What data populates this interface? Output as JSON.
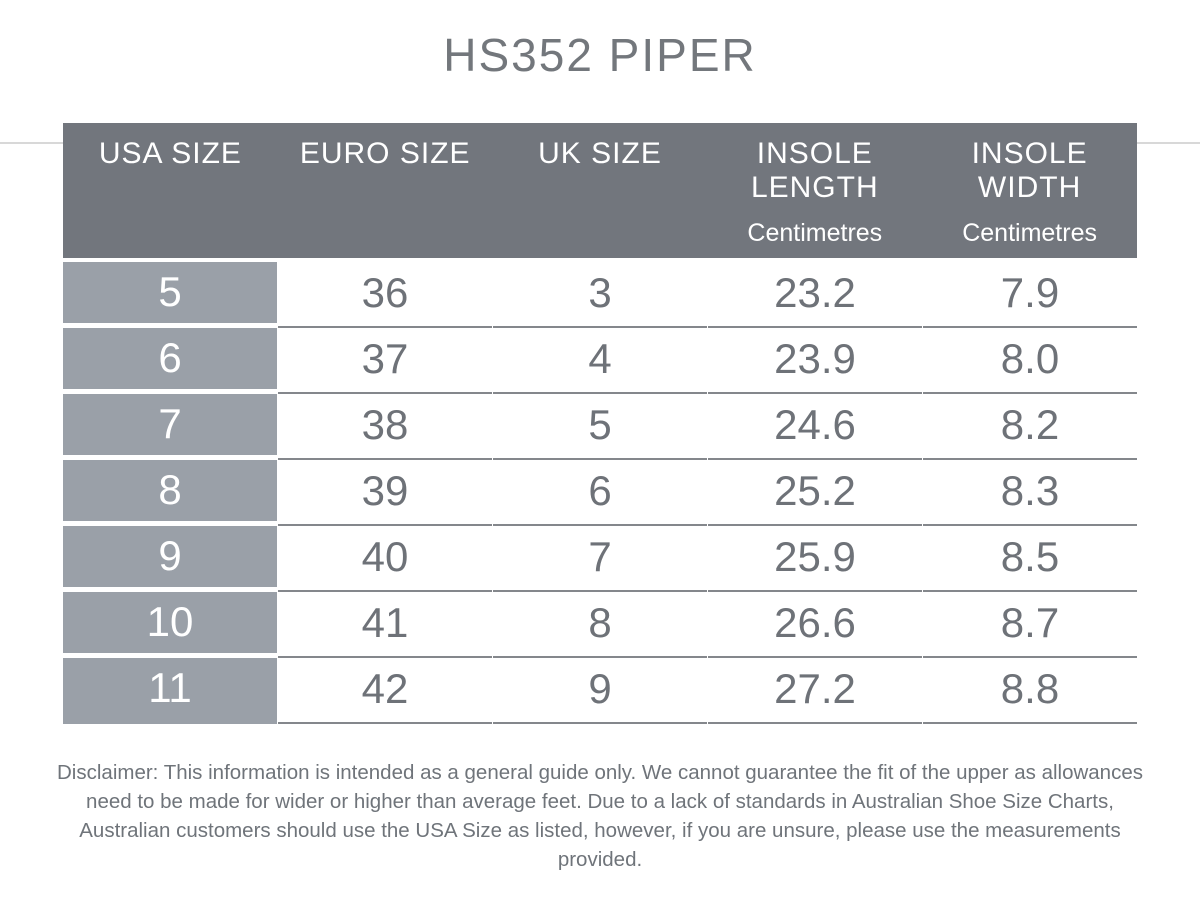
{
  "page": {
    "title": "HS352 PIPER"
  },
  "chart_data": {
    "type": "table",
    "title": "HS352 PIPER",
    "columns": [
      {
        "label": "USA SIZE",
        "sublabel": ""
      },
      {
        "label": "EURO SIZE",
        "sublabel": ""
      },
      {
        "label": "UK SIZE",
        "sublabel": ""
      },
      {
        "label": "INSOLE LENGTH",
        "sublabel": "Centimetres"
      },
      {
        "label": "INSOLE WIDTH",
        "sublabel": "Centimetres"
      }
    ],
    "rows": [
      [
        "5",
        "36",
        "3",
        "23.2",
        "7.9"
      ],
      [
        "6",
        "37",
        "4",
        "23.9",
        "8.0"
      ],
      [
        "7",
        "38",
        "5",
        "24.6",
        "8.2"
      ],
      [
        "8",
        "39",
        "6",
        "25.2",
        "8.3"
      ],
      [
        "9",
        "40",
        "7",
        "25.9",
        "8.5"
      ],
      [
        "10",
        "41",
        "8",
        "26.6",
        "8.7"
      ],
      [
        "11",
        "42",
        "9",
        "27.2",
        "8.8"
      ]
    ]
  },
  "disclaimer": "Disclaimer: This information is intended as a general guide only. We cannot guarantee the fit of the upper as allowances need to be made for wider or higher than average feet. Due to a lack of standards in Australian Shoe Size Charts, Australian customers should use the USA Size as listed, however, if you are unsure, please use the measurements provided.",
  "colors": {
    "header_bg": "#72767d",
    "usa_column_bg": "#9aa0a8",
    "row_line": "#84878c",
    "cell_text": "#6e7278",
    "header_text": "#ffffff",
    "title_text": "#73777c",
    "disclaimer_text": "#6f747a",
    "edge_line": "#d8d8d8"
  }
}
